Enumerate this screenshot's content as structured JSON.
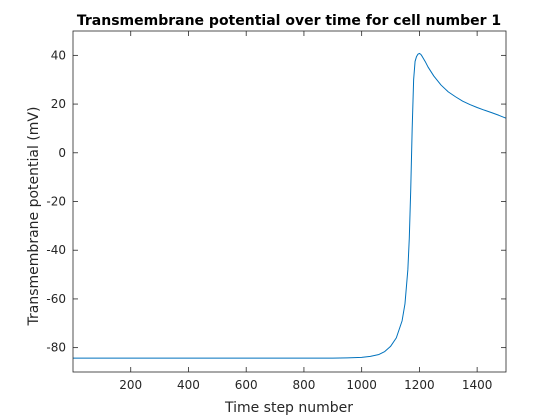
{
  "chart_data": {
    "type": "line",
    "title": "Transmembrane potential over time for cell number 1",
    "xlabel": "Time step number",
    "ylabel": "Transmembrane potential (mV)",
    "xlim": [
      0,
      1500
    ],
    "ylim": [
      -90,
      50
    ],
    "xticks": [
      200,
      400,
      600,
      800,
      1000,
      1200,
      1400
    ],
    "yticks": [
      -80,
      -60,
      -40,
      -20,
      0,
      20,
      40
    ],
    "grid": false,
    "series_color": "#0072BD",
    "series": [
      {
        "x": [
          0,
          200,
          400,
          600,
          800,
          900,
          950,
          1000,
          1030,
          1060,
          1080,
          1100,
          1120,
          1140,
          1150,
          1160,
          1165,
          1170,
          1175,
          1180,
          1185,
          1190,
          1195,
          1200,
          1205,
          1210,
          1220,
          1230,
          1250,
          1275,
          1300,
          1325,
          1350,
          1375,
          1400,
          1425,
          1450,
          1475,
          1500
        ],
        "y": [
          -84.3,
          -84.3,
          -84.3,
          -84.3,
          -84.3,
          -84.3,
          -84.2,
          -84.0,
          -83.6,
          -82.8,
          -81.6,
          -79.5,
          -76.0,
          -69.0,
          -62.0,
          -48.0,
          -35.0,
          -15.0,
          10.0,
          30.0,
          37.5,
          39.5,
          40.5,
          40.8,
          40.4,
          39.5,
          37.5,
          35.2,
          31.5,
          27.8,
          25.0,
          23.0,
          21.2,
          19.8,
          18.6,
          17.5,
          16.5,
          15.4,
          14.2
        ]
      }
    ]
  }
}
